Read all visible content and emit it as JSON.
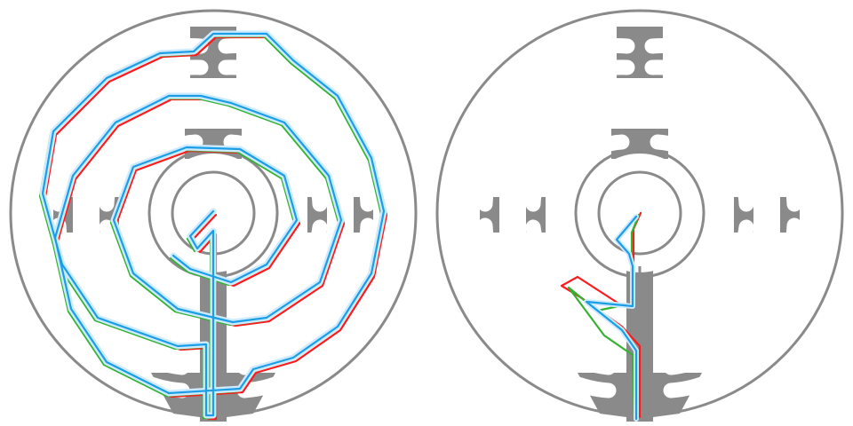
{
  "colors": {
    "background": "#ffffff",
    "wall": "#8a8a8a",
    "corridor": "#ffffff",
    "path_red": "#ff1a1a",
    "path_green": "#33b233",
    "path_blue": "#1a9ee8",
    "blue_glow": "#cdeaff"
  },
  "panels": [
    {
      "id": "left",
      "label": "",
      "paths": [
        "red",
        "green",
        "blue"
      ],
      "variant": "full-traversal"
    },
    {
      "id": "right",
      "label": "",
      "paths": [
        "red",
        "green",
        "blue"
      ],
      "variant": "short-descent"
    }
  ]
}
